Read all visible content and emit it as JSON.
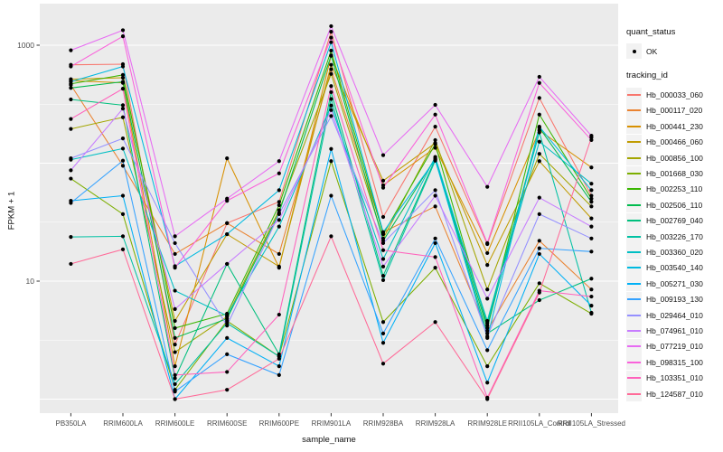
{
  "figure": {
    "x_axis_title": "sample_name",
    "y_axis_title": "FPKM + 1",
    "legend": {
      "quant_status_title": "quant_status",
      "quant_status_items": [
        {
          "label": "OK",
          "marker": "black-point"
        }
      ],
      "tracking_id_title": "tracking_id"
    },
    "style": {
      "panel_bg": "#ebebeb",
      "grid_color": "#ffffff",
      "tick_text_color": "#4d4d4d",
      "point_color": "#000000",
      "legend_key_bg": "#f2f2f2"
    }
  },
  "chart_data": {
    "type": "line",
    "title": "",
    "xlabel": "sample_name",
    "ylabel": "FPKM + 1",
    "y_scale": "log10",
    "ylim": [
      1,
      1500
    ],
    "y_major_gridlines": [
      1,
      10,
      100,
      1000
    ],
    "y_minor_gridlines": [
      3.162,
      31.62,
      316.2
    ],
    "y_tick_labels": [
      {
        "value": 1000,
        "label": "1000"
      },
      {
        "value": 10,
        "label": "10"
      }
    ],
    "legend_position": "right",
    "grid": true,
    "point_marker": "filled-black-circle (quant_status = OK)",
    "categories": [
      "PB350LA",
      "RRIM600LA",
      "RRIM600LE",
      "RRIM600SE",
      "RRIM600PE",
      "RRIM901LA",
      "RRIM928BA",
      "RRIM928LA",
      "RRIM928LE",
      "RRII105LA_Control",
      "RRII105LA_Stressed"
    ],
    "series": [
      {
        "name": "Hb_000033_060",
        "color": "#F8766D",
        "values": [
          682,
          690,
          2.9,
          31,
          47,
          1300,
          35,
          204,
          20.6,
          357,
          53
        ]
      },
      {
        "name": "Hb_000117_020",
        "color": "#EA8331",
        "values": [
          460,
          95,
          17,
          31,
          17,
          625,
          26,
          43,
          3.8,
          22,
          8.5
        ]
      },
      {
        "name": "Hb_000441_230",
        "color": "#D89000",
        "values": [
          500,
          480,
          1.9,
          110,
          13,
          813,
          65,
          135,
          17.3,
          190,
          92
        ]
      },
      {
        "name": "Hb_000466_060",
        "color": "#C09B00",
        "values": [
          515,
          530,
          4.6,
          25,
          13.3,
          682,
          71,
          148,
          13.7,
          104,
          34
        ]
      },
      {
        "name": "Hb_000856_100",
        "color": "#A3A500",
        "values": [
          195,
          245,
          2.5,
          5.0,
          40,
          571,
          23,
          157,
          8.5,
          120,
          43
        ]
      },
      {
        "name": "Hb_001668_030",
        "color": "#7CAE00",
        "values": [
          74,
          37,
          1.2,
          4.6,
          2.3,
          104,
          4.5,
          13,
          1.9,
          9.6,
          5.3
        ]
      },
      {
        "name": "Hb_002253_110",
        "color": "#39B600",
        "values": [
          470,
          560,
          4.0,
          5.3,
          44,
          900,
          25,
          145,
          4.2,
          258,
          50
        ]
      },
      {
        "name": "Hb_002506_110",
        "color": "#00BB4E",
        "values": [
          434,
          490,
          3.3,
          4.8,
          38,
          820,
          22,
          110,
          4.0,
          200,
          47
        ]
      },
      {
        "name": "Hb_002769_040",
        "color": "#00BF7D",
        "values": [
          347,
          310,
          1.5,
          14,
          2.4,
          400,
          11.1,
          108,
          3.6,
          6.9,
          10.5
        ]
      },
      {
        "name": "Hb_003226_170",
        "color": "#00C1A3",
        "values": [
          23.7,
          24,
          1.34,
          4.4,
          2.3,
          350,
          10.2,
          105,
          4.6,
          182,
          5.4
        ]
      },
      {
        "name": "Hb_003360_020",
        "color": "#00BFC4",
        "values": [
          107,
          133,
          8.3,
          5.1,
          29,
          308,
          15.4,
          113,
          4.4,
          152,
          67
        ]
      },
      {
        "name": "Hb_003540_140",
        "color": "#00BAE0",
        "values": [
          490,
          660,
          13.4,
          25,
          59,
          1060,
          26,
          107,
          3.3,
          204,
          59
        ]
      },
      {
        "name": "Hb_005271_030",
        "color": "#00B0F6",
        "values": [
          48,
          53,
          1.0,
          3.3,
          1.9,
          132,
          3.0,
          21,
          1.38,
          17,
          6.2
        ]
      },
      {
        "name": "Hb_009193_130",
        "color": "#35A2FF",
        "values": [
          46,
          105,
          1.16,
          2.4,
          1.6,
          53,
          3.6,
          23,
          2.6,
          19,
          17.8
        ]
      },
      {
        "name": "Hb_029464_010",
        "color": "#9590FF",
        "values": [
          110,
          162,
          21,
          4.2,
          37,
          251,
          21,
          59,
          3.4,
          37,
          23
        ]
      },
      {
        "name": "Hb_074961_010",
        "color": "#C77CFF",
        "values": [
          87,
          290,
          5.8,
          14,
          33,
          282,
          13.3,
          53,
          7.1,
          51,
          29
        ]
      },
      {
        "name": "Hb_077219_010",
        "color": "#E76BF3",
        "values": [
          905,
          1340,
          24,
          50,
          104,
          1450,
          117,
          312,
          63,
          539,
          171
        ]
      },
      {
        "name": "Hb_098315_100",
        "color": "#FA62DB",
        "values": [
          660,
          1190,
          13,
          48,
          82,
          1160,
          62,
          258,
          21,
          479,
          157
        ]
      },
      {
        "name": "Hb_103351_010",
        "color": "#FF62BC",
        "values": [
          237,
          428,
          1.6,
          1.7,
          5.2,
          450,
          18.3,
          16,
          1.03,
          8.3,
          7.4
        ]
      },
      {
        "name": "Hb_124587_010",
        "color": "#FF6A98",
        "values": [
          14,
          18.6,
          1.0,
          1.2,
          2.2,
          24,
          2.0,
          4.5,
          1.0,
          8.0,
          165
        ]
      }
    ]
  }
}
